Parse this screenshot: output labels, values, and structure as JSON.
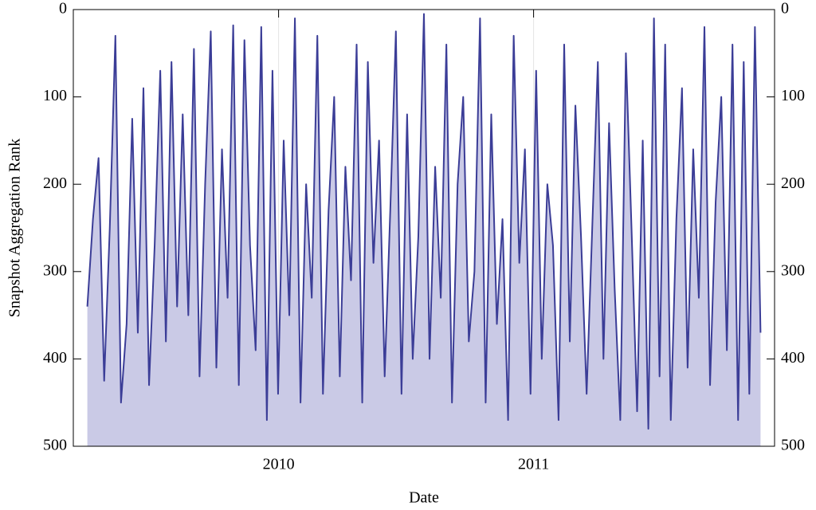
{
  "chart_data": {
    "type": "line",
    "y_label": "Snapshot Aggregation Rank",
    "x_label": "Date",
    "xlim": [
      2009.195,
      2011.945
    ],
    "xticks": [
      2010,
      2011
    ],
    "ylim": [
      500,
      0
    ],
    "yticks": [
      0,
      100,
      200,
      300,
      400,
      500
    ],
    "grid": true,
    "area": true,
    "fill": "#cacae6",
    "x": [
      2009.25,
      2009.272,
      2009.294,
      2009.316,
      2009.338,
      2009.36,
      2009.382,
      2009.404,
      2009.426,
      2009.448,
      2009.47,
      2009.492,
      2009.514,
      2009.536,
      2009.558,
      2009.58,
      2009.602,
      2009.624,
      2009.646,
      2009.668,
      2009.69,
      2009.712,
      2009.734,
      2009.756,
      2009.778,
      2009.8,
      2009.822,
      2009.844,
      2009.866,
      2009.888,
      2009.91,
      2009.932,
      2009.954,
      2009.976,
      2009.998,
      2010.02,
      2010.042,
      2010.064,
      2010.086,
      2010.108,
      2010.13,
      2010.152,
      2010.174,
      2010.196,
      2010.218,
      2010.24,
      2010.262,
      2010.284,
      2010.306,
      2010.328,
      2010.35,
      2010.372,
      2010.394,
      2010.416,
      2010.438,
      2010.46,
      2010.482,
      2010.504,
      2010.526,
      2010.548,
      2010.57,
      2010.592,
      2010.614,
      2010.636,
      2010.658,
      2010.68,
      2010.702,
      2010.724,
      2010.746,
      2010.768,
      2010.79,
      2010.812,
      2010.834,
      2010.856,
      2010.878,
      2010.9,
      2010.922,
      2010.944,
      2010.966,
      2010.988,
      2011.01,
      2011.032,
      2011.054,
      2011.076,
      2011.098,
      2011.12,
      2011.142,
      2011.164,
      2011.186,
      2011.208,
      2011.23,
      2011.252,
      2011.274,
      2011.296,
      2011.318,
      2011.34,
      2011.362,
      2011.384,
      2011.406,
      2011.428,
      2011.45,
      2011.472,
      2011.494,
      2011.516,
      2011.538,
      2011.56,
      2011.582,
      2011.604,
      2011.626,
      2011.648,
      2011.67,
      2011.692,
      2011.714,
      2011.736,
      2011.758,
      2011.78,
      2011.802,
      2011.824,
      2011.846,
      2011.868,
      2011.89
    ],
    "series": [
      {
        "color": "#3b3d97",
        "values": [
          340,
          240,
          170,
          425,
          250,
          30,
          450,
          360,
          125,
          370,
          90,
          430,
          270,
          70,
          380,
          60,
          340,
          120,
          350,
          45,
          420,
          200,
          25,
          410,
          160,
          330,
          18,
          430,
          35,
          270,
          390,
          20,
          470,
          70,
          440,
          150,
          350,
          10,
          450,
          200,
          330,
          30,
          440,
          230,
          100,
          420,
          180,
          310,
          40,
          450,
          60,
          290,
          150,
          420,
          230,
          25,
          440,
          120,
          400,
          260,
          5,
          400,
          180,
          330,
          40,
          450,
          200,
          100,
          380,
          300,
          10,
          450,
          120,
          360,
          240,
          470,
          30,
          290,
          160,
          440,
          70,
          400,
          200,
          270,
          470,
          40,
          380,
          110,
          260,
          440,
          250,
          60,
          400,
          130,
          320,
          470,
          50,
          250,
          460,
          150,
          480,
          10,
          420,
          40,
          470,
          240,
          90,
          410,
          160,
          330,
          20,
          430,
          220,
          100,
          390,
          40,
          470,
          60,
          440,
          20,
          370
        ]
      }
    ]
  }
}
